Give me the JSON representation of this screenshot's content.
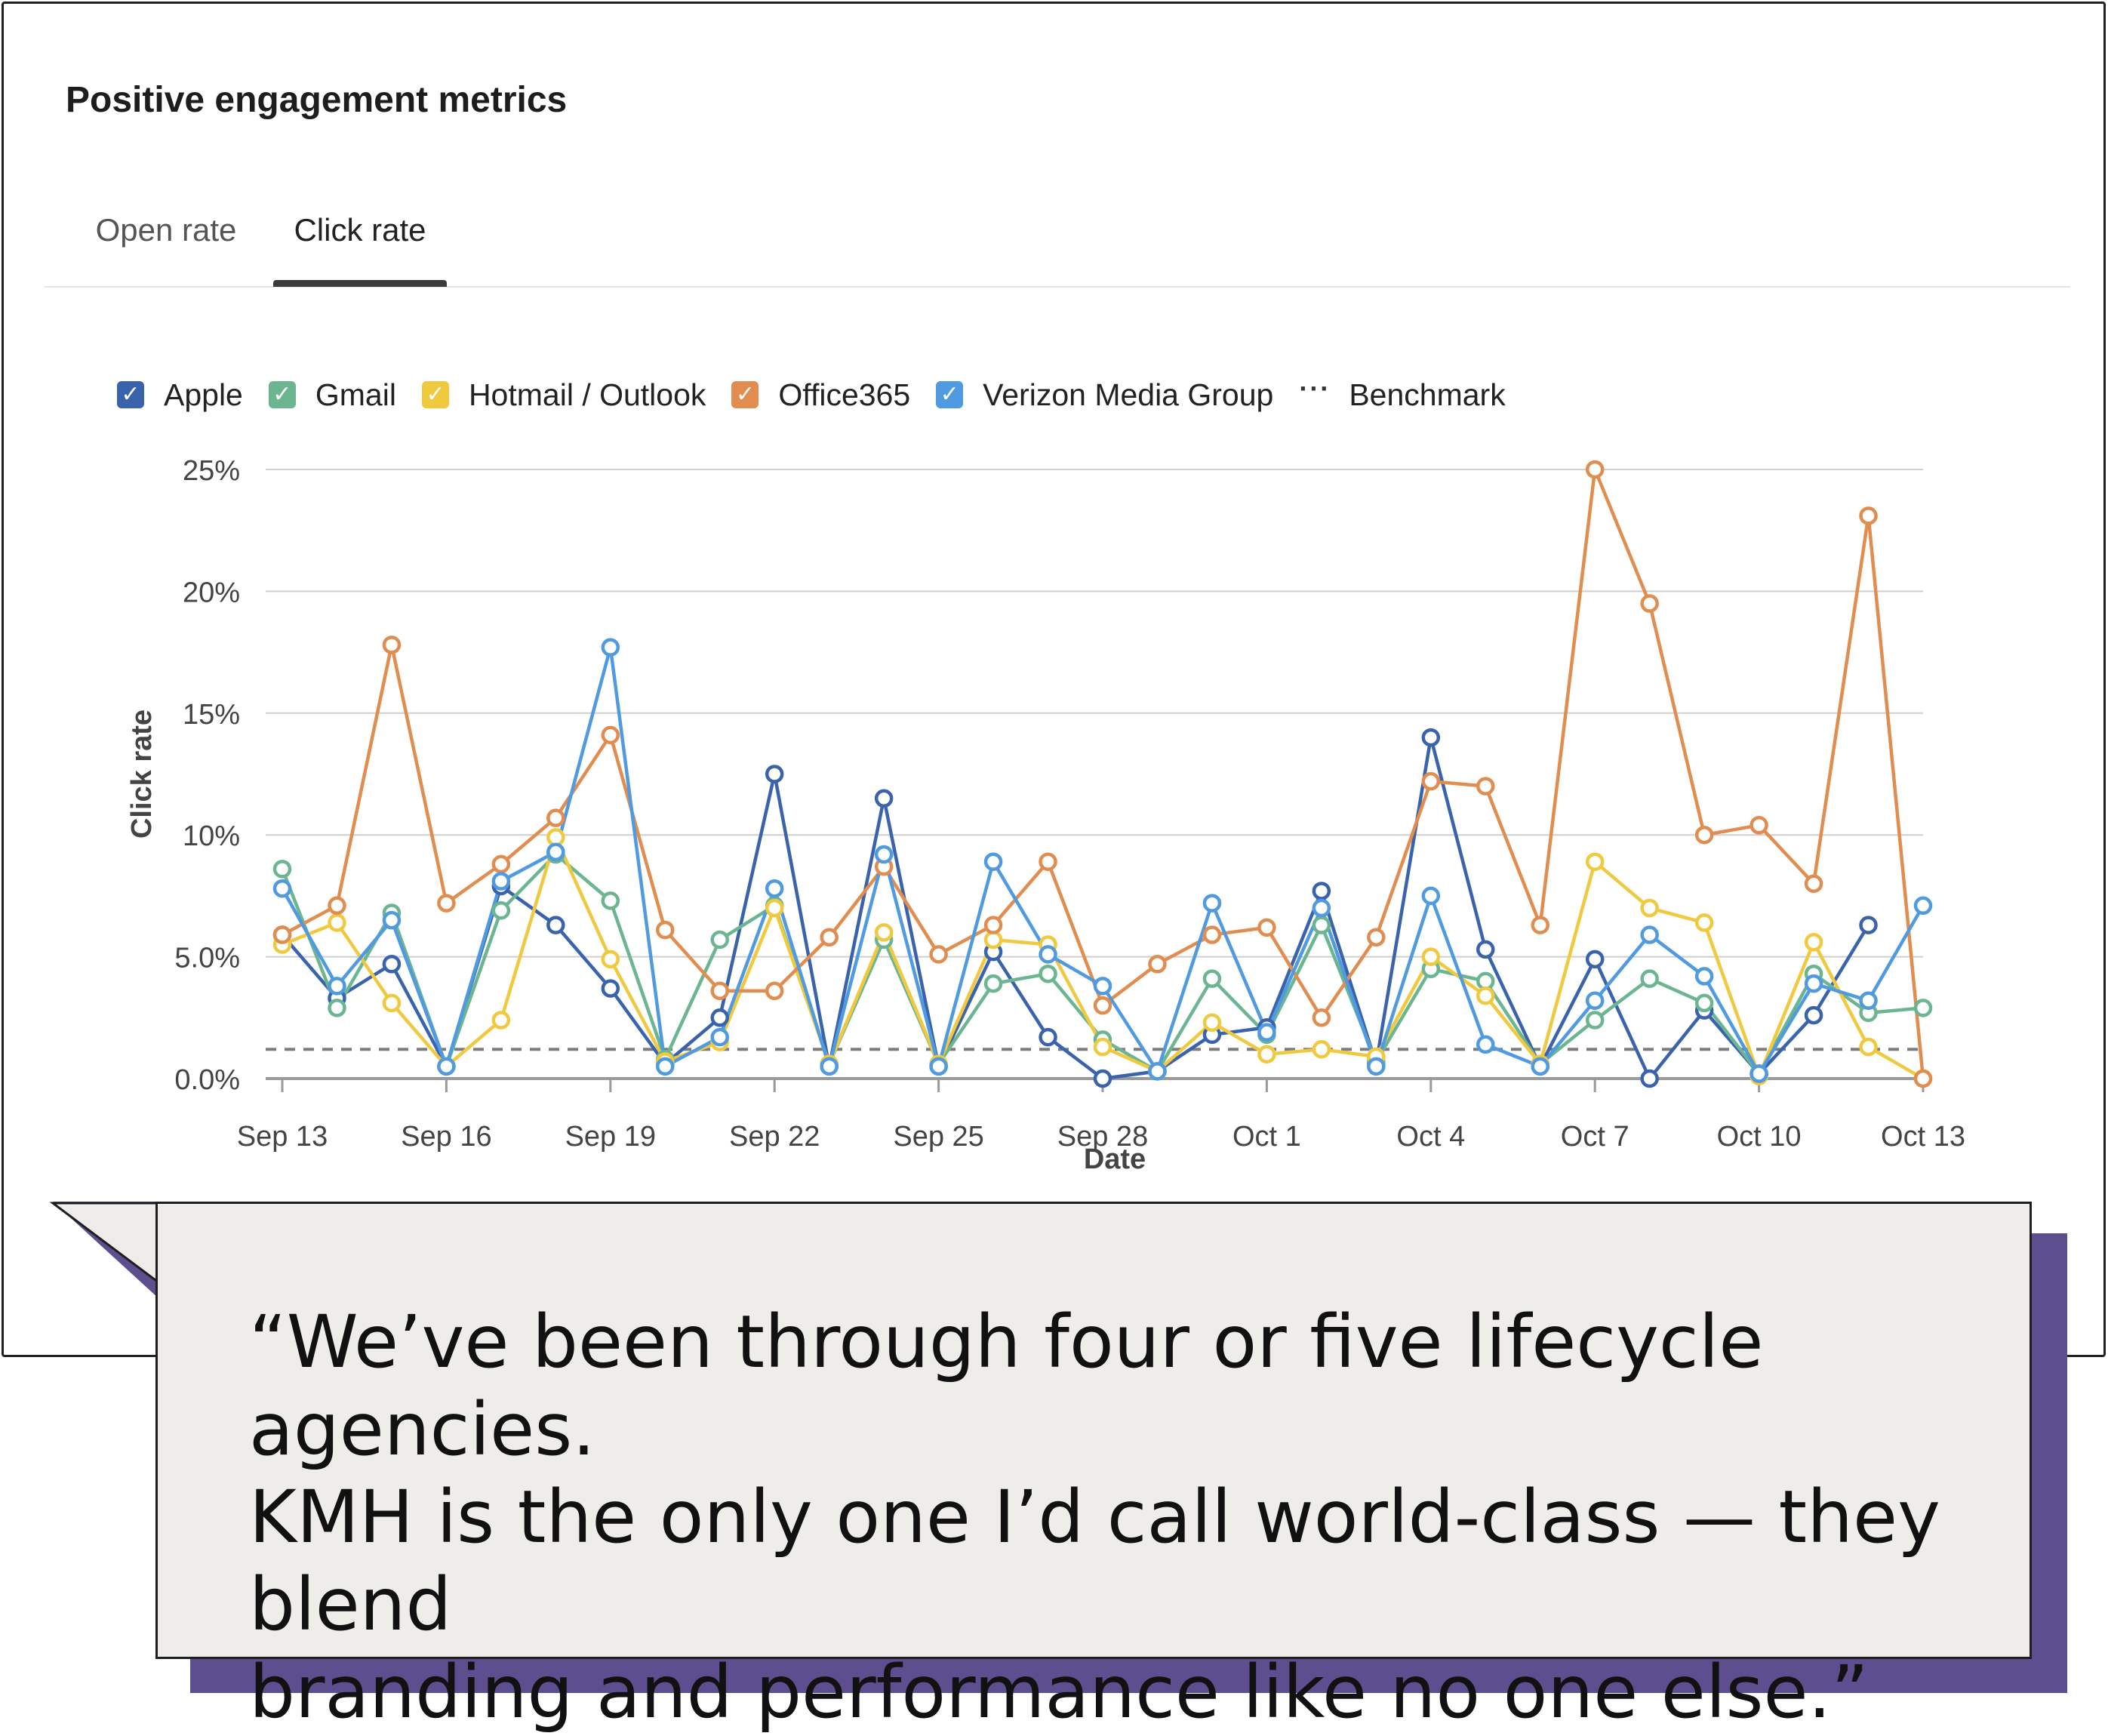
{
  "card": {
    "title": "Positive engagement metrics",
    "tabs": [
      {
        "label": "Open rate",
        "active": false
      },
      {
        "label": "Click rate",
        "active": true
      }
    ]
  },
  "legend": [
    {
      "label": "Apple",
      "color": "#3a63ad",
      "check": "✓"
    },
    {
      "label": "Gmail",
      "color": "#6bb591",
      "check": "✓"
    },
    {
      "label": "Hotmail / Outlook",
      "color": "#f0c93f",
      "check": "✓"
    },
    {
      "label": "Office365",
      "color": "#e08d4f",
      "check": "✓"
    },
    {
      "label": "Verizon Media Group",
      "color": "#4f9ae0",
      "check": "✓"
    },
    {
      "label": "Benchmark",
      "dots": "···"
    }
  ],
  "chart_data": {
    "type": "line",
    "ylabel": "Click rate",
    "xlabel": "Date",
    "ylim": [
      0,
      25
    ],
    "yticks": [
      "0.0%",
      "5.0%",
      "10%",
      "15%",
      "20%",
      "25%"
    ],
    "ytick_values": [
      0,
      5,
      10,
      15,
      20,
      25
    ],
    "xticks": [
      "Sep 13",
      "Sep 16",
      "Sep 19",
      "Sep 22",
      "Sep 25",
      "Sep 28",
      "Oct 1",
      "Oct 4",
      "Oct 7",
      "Oct 10",
      "Oct 13"
    ],
    "x": [
      "Sep 13",
      "Sep 14",
      "Sep 15",
      "Sep 16",
      "Sep 17",
      "Sep 18",
      "Sep 19",
      "Sep 20",
      "Sep 21",
      "Sep 22",
      "Sep 23",
      "Sep 24",
      "Sep 25",
      "Sep 26",
      "Sep 27",
      "Sep 28",
      "Sep 29",
      "Sep 30",
      "Oct 1",
      "Oct 2",
      "Oct 3",
      "Oct 4",
      "Oct 5",
      "Oct 6",
      "Oct 7",
      "Oct 8",
      "Oct 9",
      "Oct 10",
      "Oct 11",
      "Oct 12",
      "Oct 13"
    ],
    "benchmark": 1.2,
    "grid": true,
    "legend_position": "top-left",
    "series": [
      {
        "name": "Apple",
        "color": "#3a63ad",
        "values": [
          5.9,
          3.3,
          4.7,
          0.5,
          7.9,
          6.3,
          3.7,
          0.6,
          2.5,
          12.5,
          0.5,
          11.5,
          0.5,
          5.2,
          1.7,
          0.0,
          0.3,
          1.8,
          2.1,
          7.7,
          0.6,
          14.0,
          5.3,
          0.5,
          4.9,
          0.0,
          2.8,
          0.2,
          2.6,
          6.3,
          null
        ]
      },
      {
        "name": "Gmail",
        "color": "#6bb591",
        "values": [
          8.6,
          2.9,
          6.8,
          0.5,
          6.9,
          9.2,
          7.3,
          0.8,
          5.7,
          7.1,
          0.6,
          5.7,
          0.6,
          3.9,
          4.3,
          1.6,
          0.3,
          4.1,
          1.8,
          6.3,
          0.7,
          4.5,
          4.0,
          0.6,
          2.4,
          4.1,
          3.1,
          0.2,
          4.3,
          2.7,
          2.9
        ]
      },
      {
        "name": "Hotmail / Outlook",
        "color": "#f0c93f",
        "values": [
          5.5,
          6.4,
          3.1,
          0.5,
          2.4,
          9.9,
          4.9,
          0.7,
          1.5,
          7.0,
          0.6,
          6.0,
          0.6,
          5.7,
          5.5,
          1.3,
          0.3,
          2.3,
          1.0,
          1.2,
          0.9,
          5.0,
          3.4,
          0.6,
          8.9,
          7.0,
          6.4,
          0.1,
          5.6,
          1.3,
          0.0
        ]
      },
      {
        "name": "Office365",
        "color": "#e08d4f",
        "values": [
          5.9,
          7.1,
          17.8,
          7.2,
          8.8,
          10.7,
          14.1,
          6.1,
          3.6,
          3.6,
          5.8,
          8.7,
          5.1,
          6.3,
          8.9,
          3.0,
          4.7,
          5.9,
          6.2,
          2.5,
          5.8,
          12.2,
          12.0,
          6.3,
          25.0,
          19.5,
          10.0,
          10.4,
          8.0,
          23.1,
          0.0
        ]
      },
      {
        "name": "Verizon Media Group",
        "color": "#4f9ae0",
        "values": [
          7.8,
          3.8,
          6.5,
          0.5,
          8.1,
          9.3,
          17.7,
          0.5,
          1.7,
          7.8,
          0.5,
          9.2,
          0.5,
          8.9,
          5.1,
          3.8,
          0.3,
          7.2,
          1.9,
          7.0,
          0.5,
          7.5,
          1.4,
          0.5,
          3.2,
          5.9,
          4.2,
          0.2,
          3.9,
          3.2,
          7.1
        ]
      }
    ]
  },
  "quote": {
    "lines": [
      "“We’ve been through four or five lifecycle agencies.",
      "KMH is the only one I’d call world-class — they blend",
      "branding and performance like no one else.”"
    ]
  }
}
